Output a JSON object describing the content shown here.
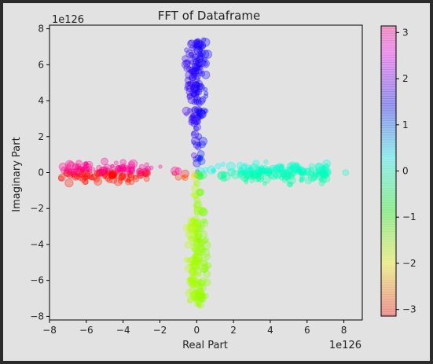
{
  "chart_data": {
    "type": "scatter",
    "title": "FFT of Dataframe",
    "xlabel": "Real Part",
    "ylabel": "Imaginary Part",
    "x_offset_label": "1e126",
    "y_offset_label": "1e126",
    "xlim": [
      -8,
      9
    ],
    "ylim": [
      -8.2,
      8.2
    ],
    "xticks": [
      -8,
      -6,
      -4,
      -2,
      0,
      2,
      4,
      6,
      8
    ],
    "yticks": [
      -8,
      -6,
      -4,
      -2,
      0,
      2,
      4,
      6,
      8
    ],
    "grid": false,
    "colorbar": {
      "colormap": "gist_rainbow-like",
      "range": [
        -3.14159,
        3.14159
      ],
      "ticks": [
        -3,
        -2,
        -1,
        0,
        1,
        2,
        3
      ],
      "alpha": 0.3
    },
    "point_alpha": 0.3,
    "color_encoding": "phase angle of (real, imaginary)",
    "size_encoding": "marker size varies per point",
    "clusters": [
      {
        "name_hint": "negative real arm",
        "x_range": [
          -7.4,
          -2.6
        ],
        "y_spread": 0.55,
        "count": 150
      },
      {
        "name_hint": "positive real arm",
        "x_range": [
          2.6,
          7.2
        ],
        "y_spread": 0.55,
        "count": 150
      },
      {
        "name_hint": "positive imaginary arm",
        "y_range": [
          2.6,
          7.4
        ],
        "x_spread": 0.55,
        "count": 150
      },
      {
        "name_hint": "negative imaginary arm",
        "y_range": [
          -7.4,
          -2.6
        ],
        "x_spread": 0.55,
        "count": 150
      },
      {
        "name_hint": "central sparse region",
        "x_range": [
          -2.6,
          2.6
        ],
        "y_range": [
          -2.6,
          2.6
        ],
        "count": 80
      },
      {
        "name_hint": "outlier",
        "x": 8.1,
        "y": 0.0,
        "count": 1
      }
    ]
  },
  "tick_labels": {
    "x": [
      "−8",
      "−6",
      "−4",
      "−2",
      "0",
      "2",
      "4",
      "6",
      "8"
    ],
    "y": [
      "−8",
      "−6",
      "−4",
      "−2",
      "0",
      "2",
      "4",
      "6",
      "8"
    ],
    "colorbar": [
      "−3",
      "−2",
      "−1",
      "0",
      "1",
      "2",
      "3"
    ]
  },
  "colors": {
    "figure_background": "#e2e2e2",
    "window_border": "#2b2b2b",
    "axes_frame": "#000000"
  }
}
